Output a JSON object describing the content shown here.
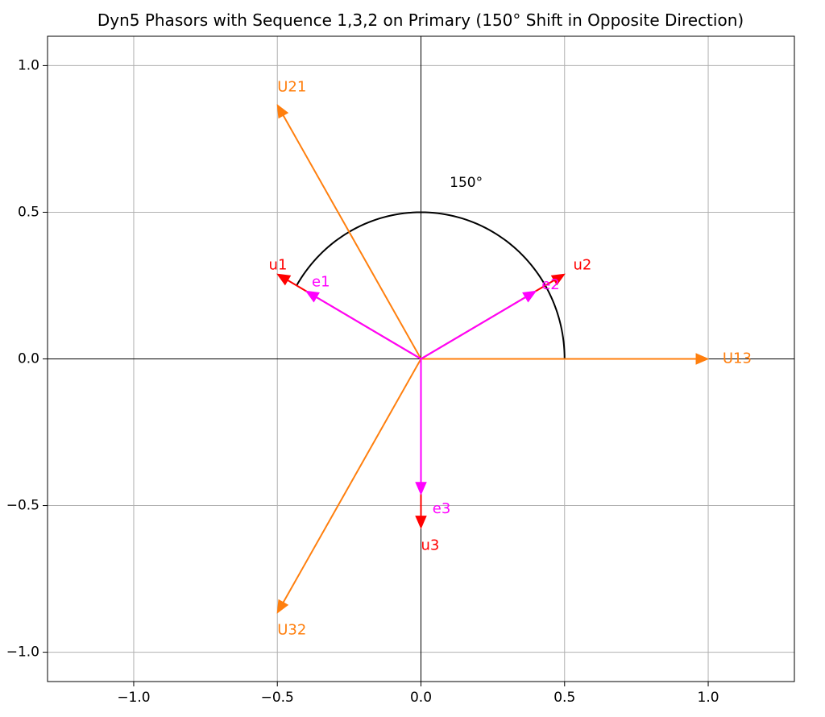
{
  "chart_data": {
    "type": "scatter",
    "title": "Dyn5 Phasors with Sequence 1,3,2 on Primary (150° Shift in Opposite Direction)",
    "xlabel": "",
    "ylabel": "",
    "xlim": [
      -1.3,
      1.3
    ],
    "ylim": [
      -1.1,
      1.1
    ],
    "grid": true,
    "x_ticks": [
      -1.0,
      -0.5,
      0.0,
      0.5,
      1.0
    ],
    "y_ticks": [
      -1.0,
      -0.5,
      0.0,
      0.5,
      1.0
    ],
    "x_tick_labels": [
      "−1.0",
      "−0.5",
      "0.0",
      "0.5",
      "1.0"
    ],
    "y_tick_labels": [
      "−1.0",
      "−0.5",
      "0.0",
      "0.5",
      "1.0"
    ],
    "arc": {
      "radius": 0.5,
      "start_deg": 0,
      "end_deg": 150,
      "color": "#000000"
    },
    "annotations": [
      {
        "text": "150°",
        "x": 0.1,
        "y": 0.6,
        "color": "#000000"
      }
    ],
    "series": [
      {
        "name": "line-voltages",
        "color": "#ff7f0e",
        "vectors": [
          {
            "label": "U13",
            "x": 1.0,
            "y": 0.0,
            "label_x": 1.05,
            "label_y": 0.0
          },
          {
            "label": "U21",
            "x": -0.5,
            "y": 0.866,
            "label_x": -0.5,
            "label_y": 0.926
          },
          {
            "label": "U32",
            "x": -0.5,
            "y": -0.866,
            "label_x": -0.5,
            "label_y": -0.926
          }
        ]
      },
      {
        "name": "secondary-phase",
        "color": "#ff0000",
        "vectors": [
          {
            "label": "u1",
            "x": -0.5,
            "y": 0.289,
            "label_x": -0.53,
            "label_y": 0.319
          },
          {
            "label": "u2",
            "x": 0.5,
            "y": 0.289,
            "label_x": 0.53,
            "label_y": 0.319
          },
          {
            "label": "u3",
            "x": 0.0,
            "y": -0.577,
            "label_x": 0.0,
            "label_y": -0.637
          }
        ]
      },
      {
        "name": "primary-emf",
        "color": "#ff00ff",
        "vectors": [
          {
            "label": "e1",
            "x": -0.4,
            "y": 0.231,
            "label_x": -0.38,
            "label_y": 0.261
          },
          {
            "label": "e2",
            "x": 0.4,
            "y": 0.231,
            "label_x": 0.42,
            "label_y": 0.251
          },
          {
            "label": "e3",
            "x": 0.0,
            "y": -0.462,
            "label_x": 0.04,
            "label_y": -0.512
          }
        ]
      }
    ]
  }
}
